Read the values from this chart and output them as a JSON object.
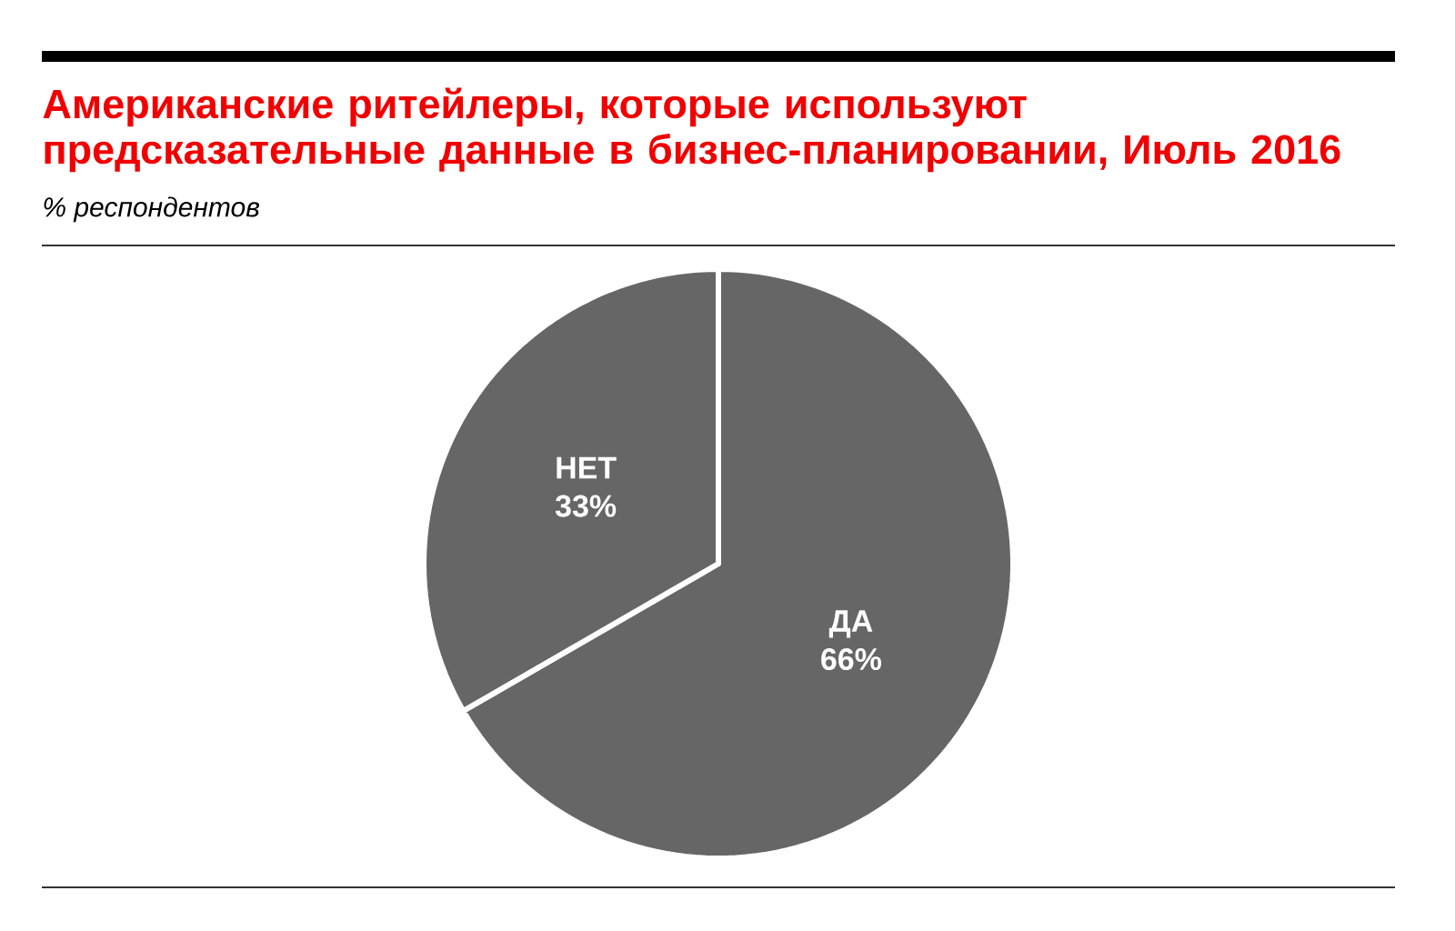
{
  "chart_data": {
    "type": "pie",
    "title": "Американские ритейлеры, которые используют предсказательные данные в бизнес-планировании, Июль 2016",
    "subtitle": "% респондентов",
    "categories": [
      "ДА",
      "НЕТ"
    ],
    "values": [
      66,
      33
    ],
    "colors": [
      "#666666",
      "#666666"
    ],
    "value_labels": [
      "66%",
      "33%"
    ]
  }
}
